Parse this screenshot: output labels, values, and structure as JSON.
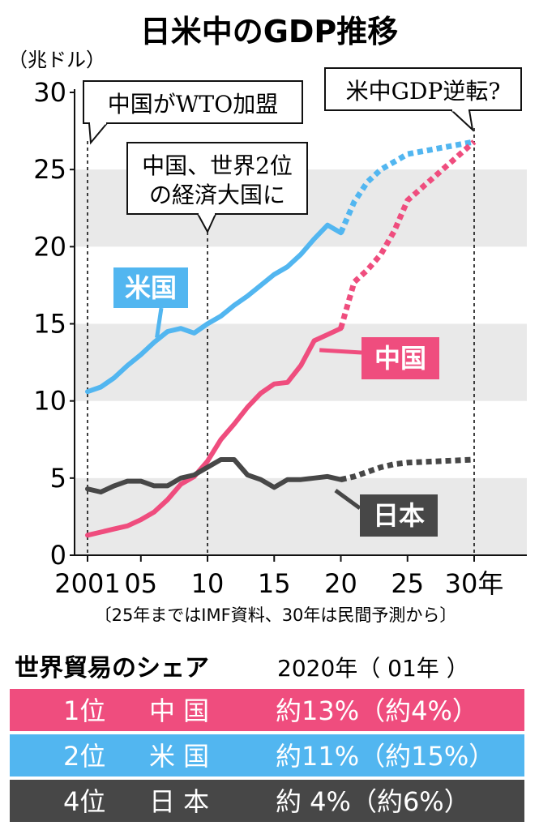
{
  "chart_data": {
    "type": "line",
    "title": "日米中のGDP推移",
    "ylabel": "（兆ドル）",
    "ylim": [
      0,
      30
    ],
    "xlim": [
      2001,
      2030
    ],
    "yticks": [
      "0",
      "5",
      "10",
      "15",
      "20",
      "25",
      "30"
    ],
    "xticks": [
      {
        "year": 2001,
        "label": "2001"
      },
      {
        "year": 2005,
        "label": "05"
      },
      {
        "year": 2010,
        "label": "10"
      },
      {
        "year": 2015,
        "label": "15"
      },
      {
        "year": 2020,
        "label": "20"
      },
      {
        "year": 2025,
        "label": "25"
      },
      {
        "year": 2030,
        "label": "30年"
      }
    ],
    "note": "〔25年まではIMF資料、30年は民間予測から〕",
    "series": [
      {
        "name": "米国",
        "color": "#52b6f0",
        "actual": [
          [
            2001,
            10.6
          ],
          [
            2002,
            10.9
          ],
          [
            2003,
            11.5
          ],
          [
            2004,
            12.3
          ],
          [
            2005,
            13.0
          ],
          [
            2006,
            13.8
          ],
          [
            2007,
            14.5
          ],
          [
            2008,
            14.7
          ],
          [
            2009,
            14.4
          ],
          [
            2010,
            15.0
          ],
          [
            2011,
            15.5
          ],
          [
            2012,
            16.2
          ],
          [
            2013,
            16.8
          ],
          [
            2014,
            17.5
          ],
          [
            2015,
            18.2
          ],
          [
            2016,
            18.7
          ],
          [
            2017,
            19.5
          ],
          [
            2018,
            20.5
          ],
          [
            2019,
            21.4
          ],
          [
            2020,
            20.9
          ]
        ],
        "forecast": [
          [
            2020,
            20.9
          ],
          [
            2021,
            22.9
          ],
          [
            2022,
            24.2
          ],
          [
            2023,
            25.0
          ],
          [
            2024,
            25.5
          ],
          [
            2025,
            26.0
          ],
          [
            2030,
            26.8
          ]
        ]
      },
      {
        "name": "中国",
        "color": "#ef4d7e",
        "actual": [
          [
            2001,
            1.3
          ],
          [
            2002,
            1.5
          ],
          [
            2003,
            1.7
          ],
          [
            2004,
            1.9
          ],
          [
            2005,
            2.3
          ],
          [
            2006,
            2.8
          ],
          [
            2007,
            3.6
          ],
          [
            2008,
            4.6
          ],
          [
            2009,
            5.1
          ],
          [
            2010,
            6.1
          ],
          [
            2011,
            7.5
          ],
          [
            2012,
            8.5
          ],
          [
            2013,
            9.6
          ],
          [
            2014,
            10.5
          ],
          [
            2015,
            11.1
          ],
          [
            2016,
            11.2
          ],
          [
            2017,
            12.3
          ],
          [
            2018,
            13.9
          ],
          [
            2019,
            14.3
          ],
          [
            2020,
            14.7
          ]
        ],
        "forecast": [
          [
            2020,
            14.7
          ],
          [
            2021,
            17.7
          ],
          [
            2022,
            18.5
          ],
          [
            2023,
            19.5
          ],
          [
            2024,
            21.0
          ],
          [
            2025,
            23.0
          ],
          [
            2030,
            26.8
          ]
        ]
      },
      {
        "name": "日本",
        "color": "#474747",
        "actual": [
          [
            2001,
            4.3
          ],
          [
            2002,
            4.1
          ],
          [
            2003,
            4.5
          ],
          [
            2004,
            4.8
          ],
          [
            2005,
            4.8
          ],
          [
            2006,
            4.5
          ],
          [
            2007,
            4.5
          ],
          [
            2008,
            5.0
          ],
          [
            2009,
            5.2
          ],
          [
            2010,
            5.7
          ],
          [
            2011,
            6.2
          ],
          [
            2012,
            6.2
          ],
          [
            2013,
            5.2
          ],
          [
            2014,
            4.9
          ],
          [
            2015,
            4.4
          ],
          [
            2016,
            4.9
          ],
          [
            2017,
            4.9
          ],
          [
            2018,
            5.0
          ],
          [
            2019,
            5.1
          ],
          [
            2020,
            4.9
          ]
        ],
        "forecast": [
          [
            2020,
            4.9
          ],
          [
            2021,
            5.1
          ],
          [
            2022,
            5.4
          ],
          [
            2023,
            5.7
          ],
          [
            2024,
            5.9
          ],
          [
            2025,
            6.0
          ],
          [
            2030,
            6.2
          ]
        ]
      }
    ],
    "annotations": [
      {
        "year": 2001,
        "lines": [
          "中国がWTO加盟"
        ]
      },
      {
        "year": 2010,
        "lines": [
          "中国、世界2位",
          "の経済大国に"
        ]
      },
      {
        "year": 2030,
        "lines": [
          "米中GDP逆転?"
        ]
      }
    ]
  },
  "share_table": {
    "title": "世界貿易のシェア",
    "header": "2020年（ 01年 ）",
    "rows": [
      {
        "rank": "1位",
        "name": "中 国",
        "value": "約13%（約4%）",
        "color": "#ef4d7e"
      },
      {
        "rank": "2位",
        "name": "米 国",
        "value": "約11%（約15%）",
        "color": "#52b6f0"
      },
      {
        "rank": "4位",
        "name": "日 本",
        "value": "約  4%（約6%）",
        "color": "#474747"
      }
    ]
  }
}
